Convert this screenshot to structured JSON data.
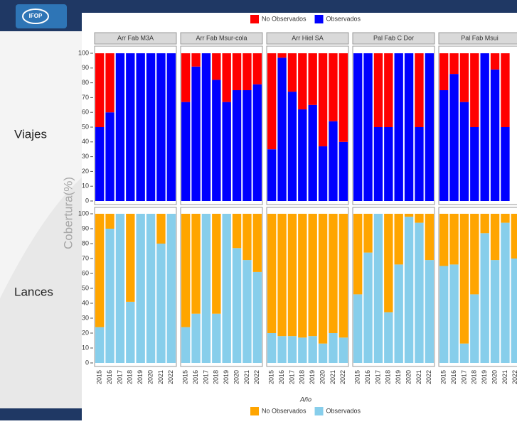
{
  "slide": {
    "logo": "IFOP",
    "y_label": "Cobertura(%)",
    "x_label": "Año"
  },
  "chart_data": [
    {
      "type": "bar",
      "stacked": true,
      "row_label": "Viajes",
      "legend": "top",
      "series": [
        {
          "name": "No Observados",
          "color": "#ff0000"
        },
        {
          "name": "Observados",
          "color": "#0000ff"
        }
      ],
      "ylim": [
        0,
        100
      ],
      "yticks": [
        0,
        10,
        20,
        30,
        40,
        50,
        60,
        70,
        80,
        90,
        100
      ],
      "facets": [
        {
          "title": "Arr Fab M3A",
          "values": [
            [
              50,
              40,
              0,
              0,
              0,
              0,
              0,
              0
            ],
            [
              50,
              60,
              100,
              100,
              100,
              100,
              100,
              100
            ]
          ]
        },
        {
          "title": "Arr Fab Msur-cola",
          "values": [
            [
              33,
              9,
              0,
              18,
              33,
              25,
              25,
              21
            ],
            [
              67,
              91,
              100,
              82,
              67,
              75,
              75,
              79
            ]
          ]
        },
        {
          "title": "Arr Hiel SA",
          "values": [
            [
              65,
              3,
              26,
              38,
              35,
              63,
              46,
              60
            ],
            [
              35,
              97,
              74,
              62,
              65,
              37,
              54,
              40
            ]
          ]
        },
        {
          "title": "Pal Fab C Dor",
          "values": [
            [
              0,
              0,
              50,
              50,
              0,
              0,
              50,
              0
            ],
            [
              100,
              100,
              50,
              50,
              100,
              100,
              50,
              100
            ]
          ]
        },
        {
          "title": "Pal Fab Msui",
          "values": [
            [
              25,
              14,
              33,
              50,
              0,
              11,
              50,
              null
            ],
            [
              75,
              86,
              67,
              50,
              100,
              89,
              50,
              null
            ]
          ]
        }
      ]
    },
    {
      "type": "bar",
      "stacked": true,
      "row_label": "Lances",
      "legend": "bottom",
      "series": [
        {
          "name": "No Observados",
          "color": "#ffa500"
        },
        {
          "name": "Observados",
          "color": "#87ceeb"
        }
      ],
      "categories": [
        "2015",
        "2016",
        "2017",
        "2018",
        "2019",
        "2020",
        "2021",
        "2022"
      ],
      "ylim": [
        0,
        100
      ],
      "yticks": [
        0,
        10,
        20,
        30,
        40,
        50,
        60,
        70,
        80,
        90,
        100
      ],
      "facets": [
        {
          "values": [
            [
              76,
              10,
              0,
              59,
              0,
              0,
              20,
              0
            ],
            [
              24,
              90,
              100,
              41,
              100,
              100,
              80,
              100
            ]
          ]
        },
        {
          "values": [
            [
              76,
              67,
              0,
              67,
              0,
              23,
              31,
              39
            ],
            [
              24,
              33,
              100,
              33,
              100,
              77,
              69,
              61
            ]
          ]
        },
        {
          "values": [
            [
              80,
              82,
              82,
              83,
              82,
              87,
              80,
              83
            ],
            [
              20,
              18,
              18,
              17,
              18,
              13,
              20,
              17
            ]
          ]
        },
        {
          "values": [
            [
              54,
              26,
              0,
              66,
              34,
              2,
              6,
              31
            ],
            [
              46,
              74,
              100,
              34,
              66,
              98,
              94,
              69
            ]
          ]
        },
        {
          "values": [
            [
              35,
              34,
              87,
              54,
              13,
              31,
              6,
              30
            ],
            [
              65,
              66,
              13,
              46,
              87,
              69,
              94,
              70
            ]
          ]
        }
      ]
    }
  ]
}
